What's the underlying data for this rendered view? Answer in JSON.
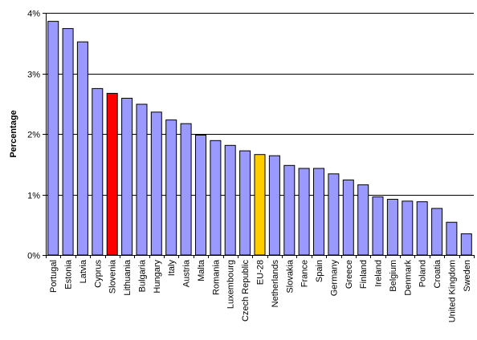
{
  "chart_data": {
    "type": "bar",
    "title": "",
    "xlabel": "",
    "ylabel": "Percentage",
    "ylim": [
      0,
      4
    ],
    "yticks": [
      0,
      1,
      2,
      3,
      4
    ],
    "ytick_labels": [
      "0%",
      "1%",
      "2%",
      "3%",
      "4%"
    ],
    "grid": true,
    "legend": "none",
    "categories": [
      "Portugal",
      "Estonia",
      "Latvia",
      "Cyprus",
      "Slovenia",
      "Lithuania",
      "Bulgaria",
      "Hungary",
      "Italy",
      "Austria",
      "Malta",
      "Romania",
      "Luxembourg",
      "Czech Republic",
      "EU-28",
      "Netherlands",
      "Slovakia",
      "France",
      "Spain",
      "Germany",
      "Greece",
      "Finland",
      "Ireland",
      "Belgium",
      "Denmark",
      "Poland",
      "Croatia",
      "United Kingdom",
      "Sweden"
    ],
    "values": [
      3.86,
      3.74,
      3.52,
      2.75,
      2.67,
      2.59,
      2.49,
      2.36,
      2.23,
      2.17,
      1.98,
      1.89,
      1.81,
      1.72,
      1.66,
      1.64,
      1.48,
      1.43,
      1.43,
      1.34,
      1.24,
      1.16,
      0.96,
      0.92,
      0.89,
      0.88,
      0.77,
      0.54,
      0.35
    ],
    "colors": {
      "default": "#9999FF",
      "highlights": {
        "Slovenia": "#FF0000",
        "EU-28": "#FFCC00"
      },
      "bar_stroke": "#000000",
      "grid": "#000000"
    }
  }
}
